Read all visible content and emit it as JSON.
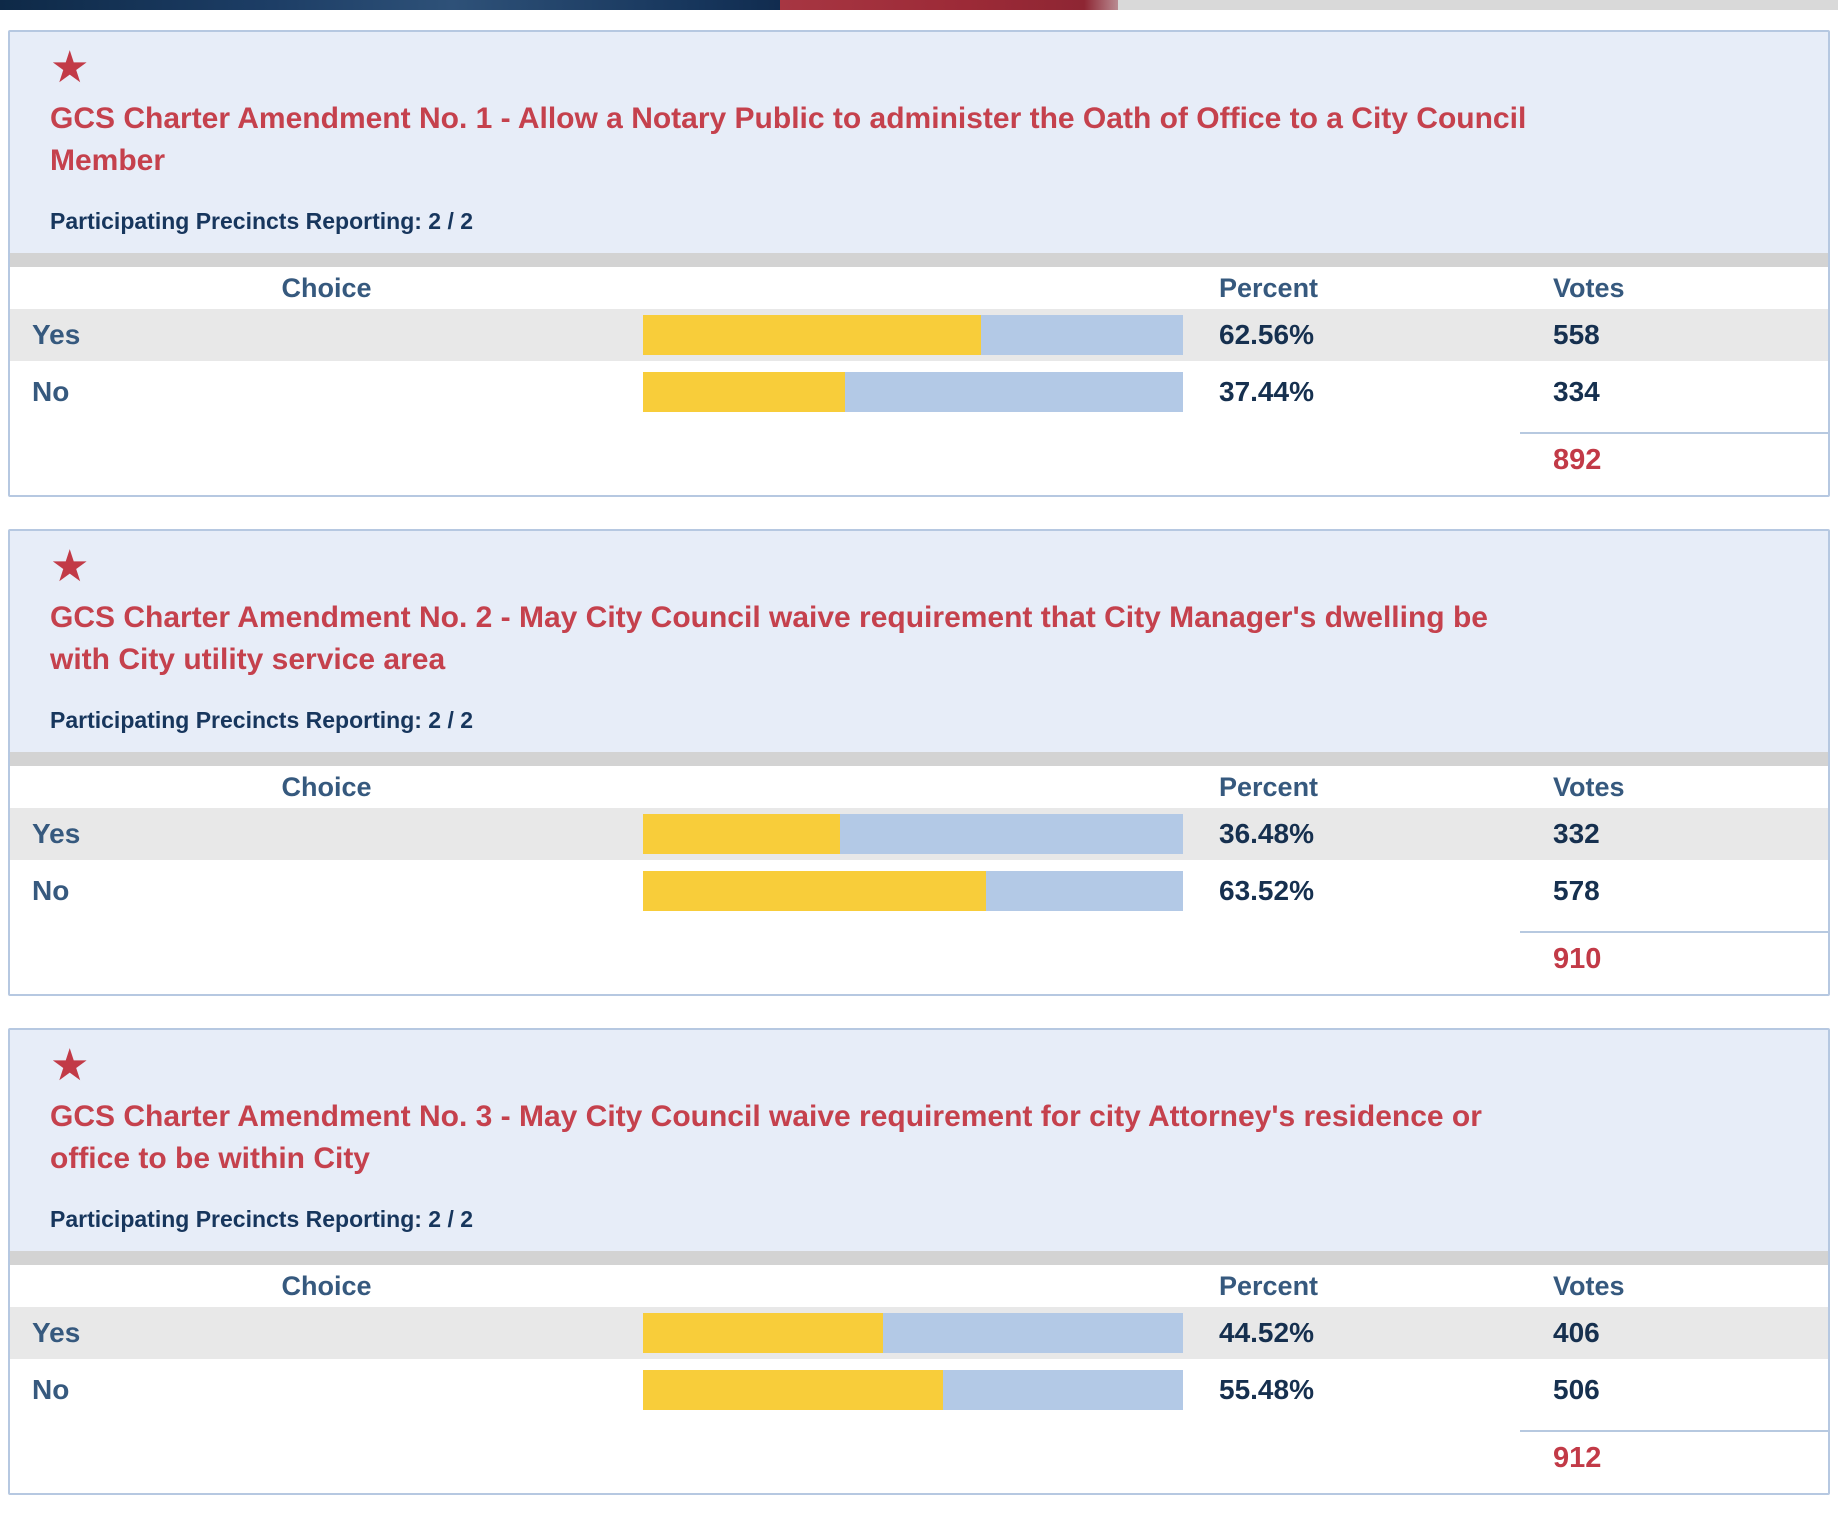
{
  "topbar": {
    "navy": "#1d3e66",
    "red": "#9c2a37",
    "gray": "#d9d9d9"
  },
  "icons": {
    "star_glyph": "★"
  },
  "labels": {
    "choice": "Choice",
    "percent": "Percent",
    "votes": "Votes"
  },
  "colors": {
    "panel_background": "#e7edf8",
    "panel_border": "#b6c8e1",
    "title_red": "#c5414d",
    "navy_text": "#17365d",
    "header_steel_blue": "#36597e",
    "value_navy": "#16304f",
    "bar_yellow": "#f8cd3a",
    "bar_blue": "#b3c9e6",
    "row_shaded": "#e8e8e8",
    "total_red": "#c23a47"
  },
  "contests": [
    {
      "title": "GCS Charter Amendment No. 1 - Allow a Notary Public to administer the Oath of Office to a City Council Member",
      "precincts": "Participating Precincts Reporting: 2 / 2",
      "rows": [
        {
          "choice": "Yes",
          "percent": "62.56%",
          "votes": "558"
        },
        {
          "choice": "No",
          "percent": "37.44%",
          "votes": "334"
        }
      ],
      "total": "892"
    },
    {
      "title": "GCS Charter Amendment No. 2 - May City Council waive requirement that City Manager's dwelling be with City utility service area",
      "precincts": "Participating Precincts Reporting: 2 / 2",
      "rows": [
        {
          "choice": "Yes",
          "percent": "36.48%",
          "votes": "332"
        },
        {
          "choice": "No",
          "percent": "63.52%",
          "votes": "578"
        }
      ],
      "total": "910"
    },
    {
      "title": "GCS Charter Amendment No. 3 - May City Council waive requirement for city Attorney's residence or office to be within City",
      "precincts": "Participating Precincts Reporting: 2 / 2",
      "rows": [
        {
          "choice": "Yes",
          "percent": "44.52%",
          "votes": "406"
        },
        {
          "choice": "No",
          "percent": "55.48%",
          "votes": "506"
        }
      ],
      "total": "912"
    }
  ],
  "chart_data": [
    {
      "type": "bar",
      "title": "GCS Charter Amendment No. 1 - Allow a Notary Public to administer the Oath of Office to a City Council Member",
      "categories": [
        "Yes",
        "No"
      ],
      "values": [
        62.56,
        37.44
      ],
      "votes": [
        558,
        334
      ],
      "total_votes": 892,
      "xlabel": "Percent",
      "ylabel": "Choice",
      "xlim": [
        0,
        100
      ],
      "legend_position": "none",
      "grid": false
    },
    {
      "type": "bar",
      "title": "GCS Charter Amendment No. 2 - May City Council waive requirement that City Manager's dwelling be with City utility service area",
      "categories": [
        "Yes",
        "No"
      ],
      "values": [
        36.48,
        63.52
      ],
      "votes": [
        332,
        578
      ],
      "total_votes": 910,
      "xlabel": "Percent",
      "ylabel": "Choice",
      "xlim": [
        0,
        100
      ],
      "legend_position": "none",
      "grid": false
    },
    {
      "type": "bar",
      "title": "GCS Charter Amendment No. 3 - May City Council waive requirement for city Attorney's residence or office to be within City",
      "categories": [
        "Yes",
        "No"
      ],
      "values": [
        44.52,
        55.48
      ],
      "votes": [
        406,
        506
      ],
      "total_votes": 912,
      "xlabel": "Percent",
      "ylabel": "Choice",
      "xlim": [
        0,
        100
      ],
      "legend_position": "none",
      "grid": false
    }
  ]
}
